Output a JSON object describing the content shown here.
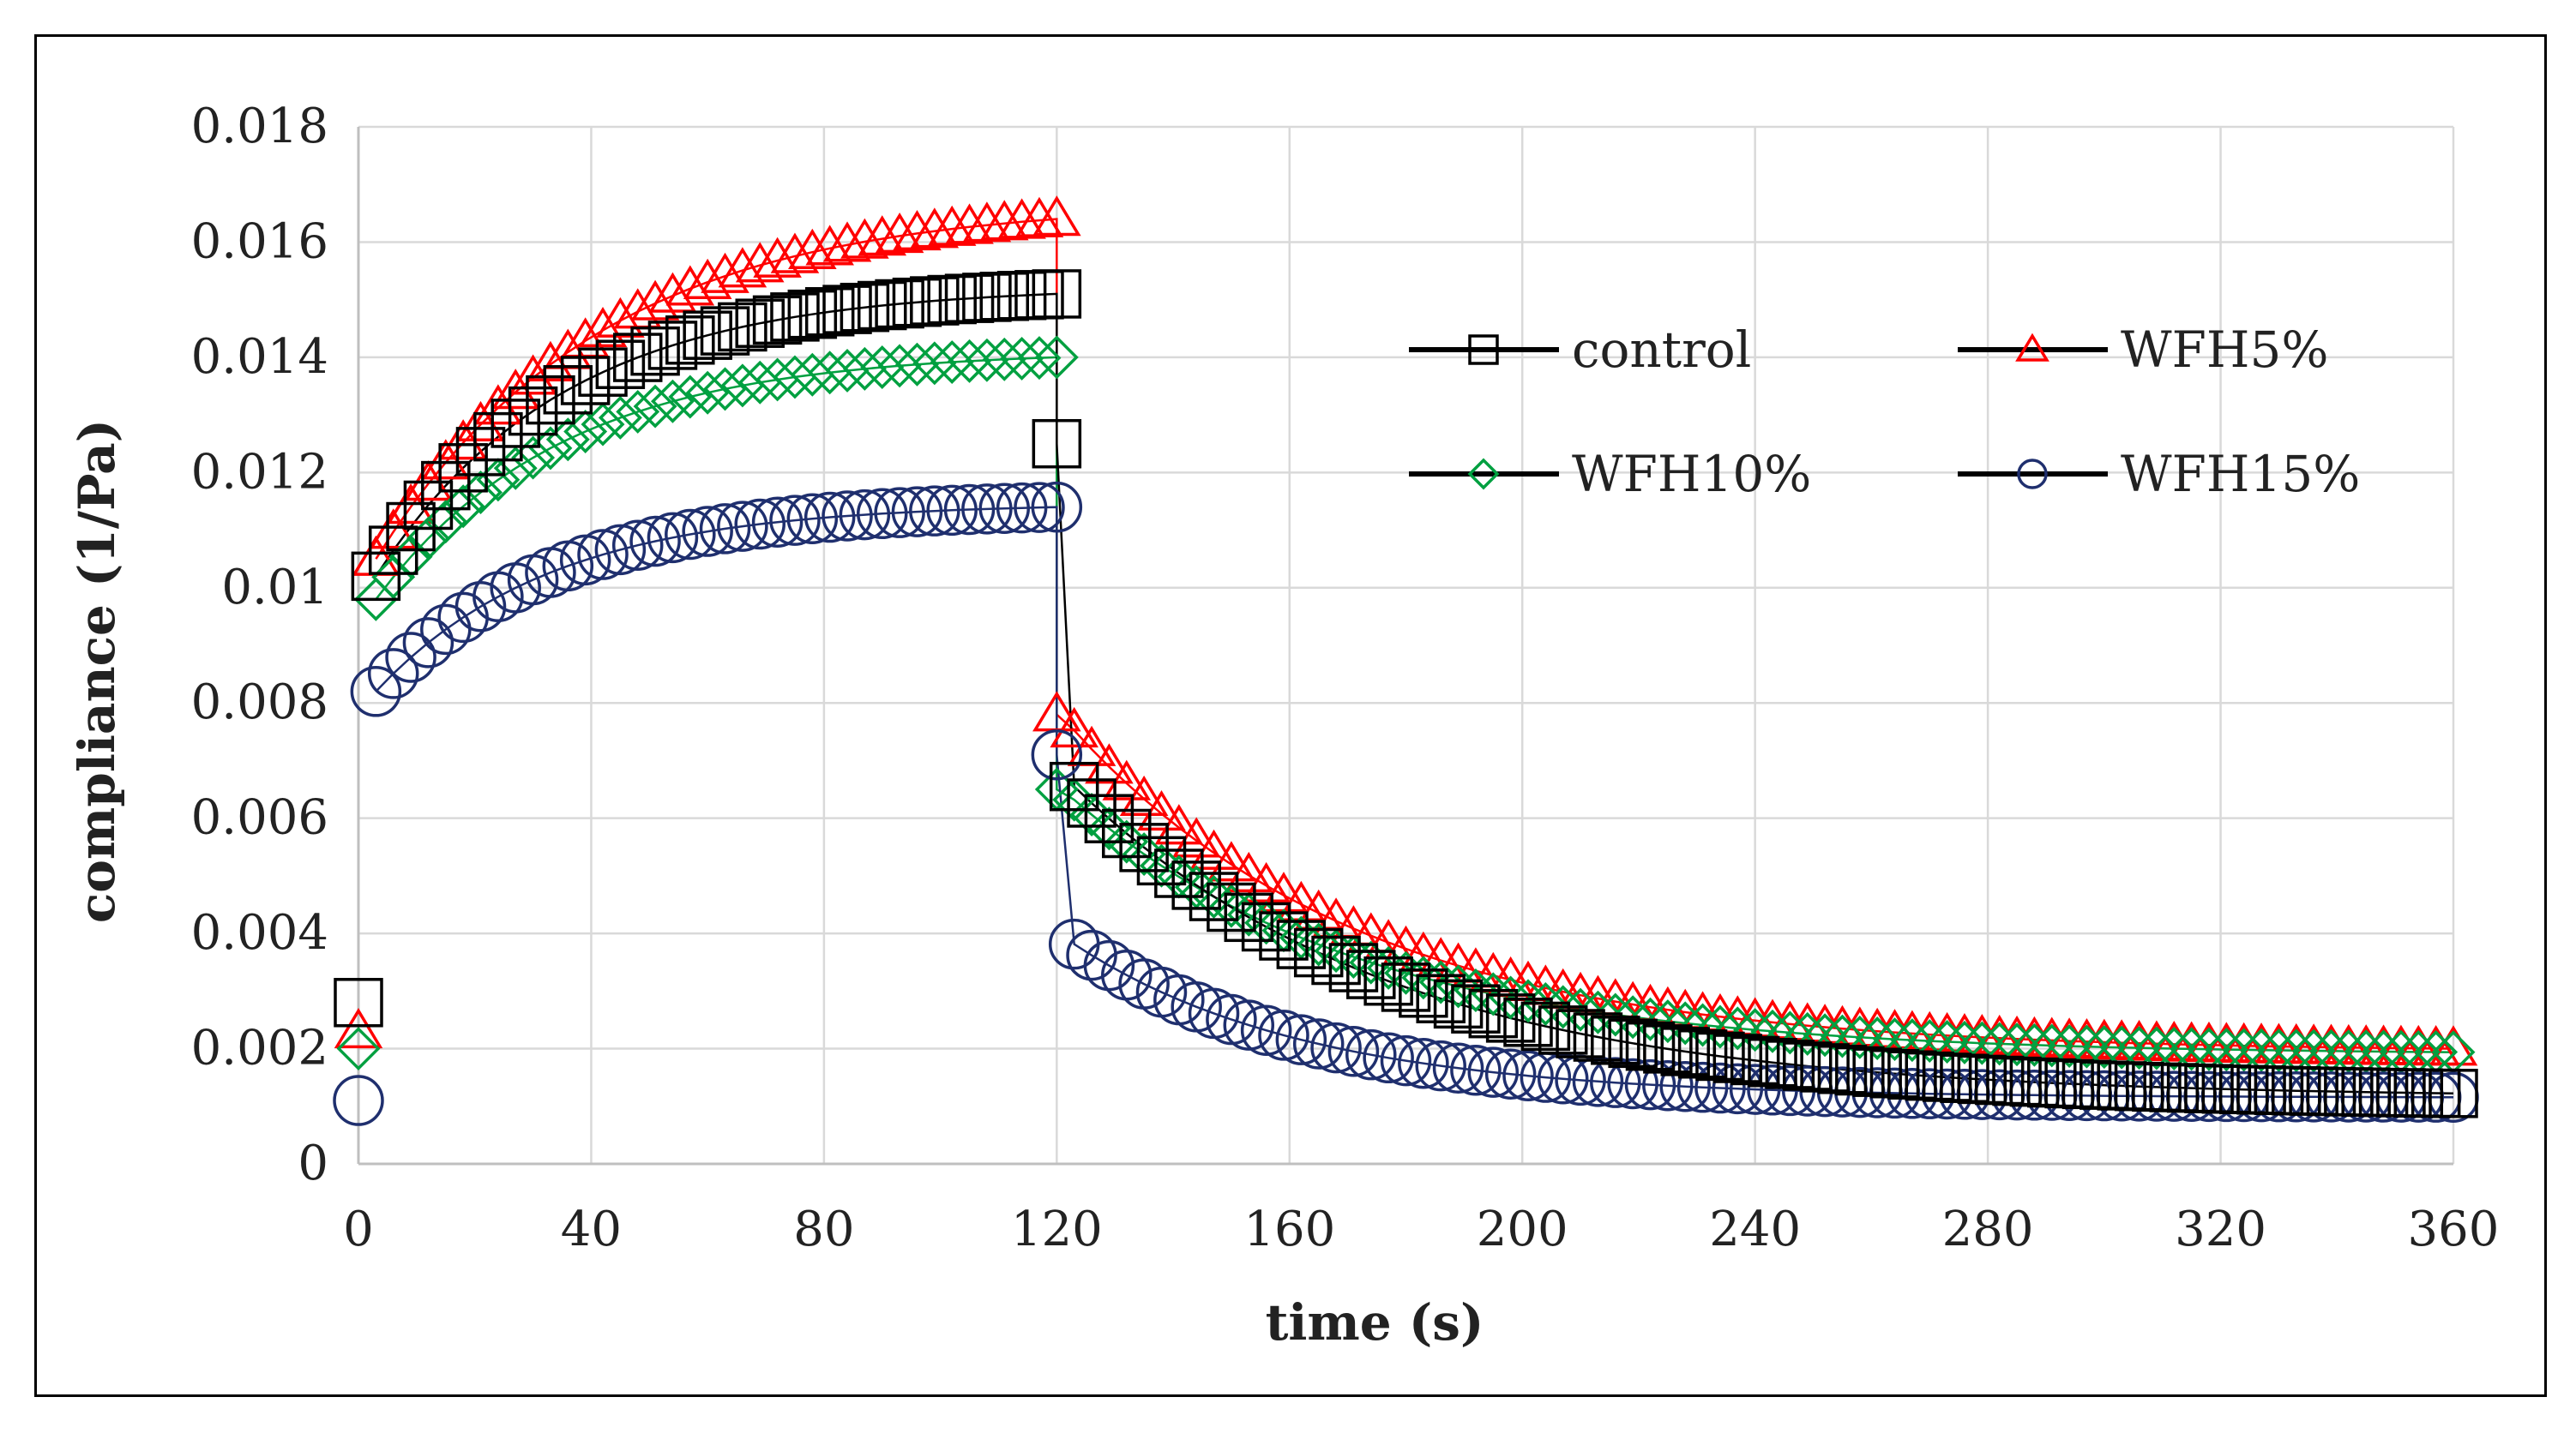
{
  "chart_data": {
    "type": "scatter",
    "title": "",
    "xlabel": "time (s)",
    "ylabel": "compliance (1/Pa)",
    "xlim": [
      0,
      360
    ],
    "ylim": [
      0,
      0.018
    ],
    "x_ticks": [
      0,
      40,
      80,
      120,
      160,
      200,
      240,
      280,
      320,
      360
    ],
    "y_ticks": [
      "0",
      "0.002",
      "0.004",
      "0.006",
      "0.008",
      "0.01",
      "0.012",
      "0.014",
      "0.016",
      "0.018"
    ],
    "grid": true,
    "legend_position": "top-right",
    "creep_end_time": 120,
    "series": [
      {
        "name": "control",
        "marker": "square",
        "color": "#000000",
        "creep": {
          "j0": 0.0028,
          "first": 0.0102,
          "end": 0.0151,
          "tau": 32
        },
        "recovery": {
          "start": 0.0125,
          "j_inf": 0.00115,
          "amp": 0.0056,
          "tau": 55
        }
      },
      {
        "name": "WFH5%",
        "marker": "triangle",
        "color": "#ff0000",
        "creep": {
          "j0": 0.0023,
          "first": 0.0105,
          "end": 0.0164,
          "tau": 38
        },
        "recovery": {
          "start": 0.0078,
          "j_inf": 0.00195,
          "amp": 0.0058,
          "tau": 50
        }
      },
      {
        "name": "WFH10%",
        "marker": "diamond",
        "color": "#00a040",
        "creep": {
          "j0": 0.002,
          "first": 0.0098,
          "end": 0.014,
          "tau": 32
        },
        "recovery": {
          "start": 0.0065,
          "j_inf": 0.0019,
          "amp": 0.0046,
          "tau": 50
        }
      },
      {
        "name": "WFH15%",
        "marker": "circle",
        "color": "#1f2f6e",
        "creep": {
          "j0": 0.0011,
          "first": 0.0082,
          "end": 0.0114,
          "tau": 30
        },
        "recovery": {
          "start": 0.0071,
          "j_inf": 0.00115,
          "amp": 0.0028,
          "tau": 40
        }
      }
    ]
  }
}
